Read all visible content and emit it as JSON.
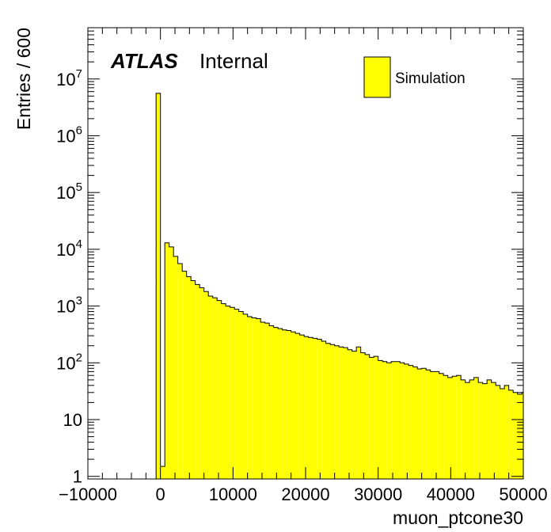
{
  "chart_data": {
    "type": "bar",
    "xlabel": "muon_ptcone30",
    "ylabel": "Entries / 600",
    "xlim": [
      -10000,
      50000
    ],
    "ylim": [
      0.9,
      80000000
    ],
    "log_y": true,
    "grid": false,
    "fill_color": "#ffff00",
    "line_color": "#000000",
    "bin_width": 600,
    "x_ticks": [
      {
        "value": -10000,
        "label": "−10000"
      },
      {
        "value": 0,
        "label": "0"
      },
      {
        "value": 10000,
        "label": "10000"
      },
      {
        "value": 20000,
        "label": "20000"
      },
      {
        "value": 30000,
        "label": "30000"
      },
      {
        "value": 40000,
        "label": "40000"
      },
      {
        "value": 50000,
        "label": "50000"
      }
    ],
    "y_ticks": [
      {
        "value": 1,
        "label": "1",
        "exp": ""
      },
      {
        "value": 10,
        "label": "10",
        "exp": ""
      },
      {
        "value": 100,
        "label": "10",
        "exp": "2"
      },
      {
        "value": 1000,
        "label": "10",
        "exp": "3"
      },
      {
        "value": 10000,
        "label": "10",
        "exp": "4"
      },
      {
        "value": 100000,
        "label": "10",
        "exp": "5"
      },
      {
        "value": 1000000,
        "label": "10",
        "exp": "6"
      },
      {
        "value": 10000000,
        "label": "10",
        "exp": "7"
      }
    ],
    "legend": {
      "label": "Simulation",
      "position": "top-right"
    },
    "annotation": {
      "experiment": "ATLAS",
      "status": "Internal"
    },
    "bin_low_edges": [
      -600,
      0,
      600,
      1200,
      1800,
      2400,
      3000,
      3600,
      4200,
      4800,
      5400,
      6000,
      6600,
      7200,
      7800,
      8400,
      9000,
      9600,
      10200,
      10800,
      11400,
      12000,
      12600,
      13200,
      13800,
      14400,
      15000,
      15600,
      16200,
      16800,
      17400,
      18000,
      18600,
      19200,
      19800,
      20400,
      21000,
      21600,
      22200,
      22800,
      23400,
      24000,
      24600,
      25200,
      25800,
      26400,
      27000,
      27600,
      28200,
      28800,
      29400,
      30000,
      30600,
      31200,
      31800,
      32400,
      33000,
      33600,
      34200,
      34800,
      35400,
      36000,
      36600,
      37200,
      37800,
      38400,
      39000,
      39600,
      40200,
      40800,
      41400,
      42000,
      42600,
      43200,
      43800,
      44400,
      45000,
      45600,
      46200,
      46800,
      47400,
      48000,
      48600,
      49200,
      49800
    ],
    "values": [
      5600000,
      1.5,
      13000,
      11000,
      7500,
      5600,
      4100,
      3300,
      2800,
      2400,
      2100,
      1800,
      1500,
      1400,
      1250,
      1100,
      1000,
      950,
      880,
      800,
      720,
      650,
      620,
      600,
      520,
      500,
      450,
      420,
      400,
      380,
      370,
      350,
      330,
      310,
      290,
      280,
      270,
      260,
      240,
      220,
      210,
      200,
      190,
      185,
      170,
      160,
      190,
      150,
      140,
      125,
      130,
      110,
      105,
      100,
      105,
      105,
      100,
      95,
      90,
      85,
      78,
      80,
      75,
      70,
      70,
      65,
      60,
      55,
      58,
      60,
      50,
      45,
      50,
      55,
      45,
      43,
      50,
      45,
      40,
      35,
      40,
      33,
      30,
      28,
      30
    ]
  }
}
